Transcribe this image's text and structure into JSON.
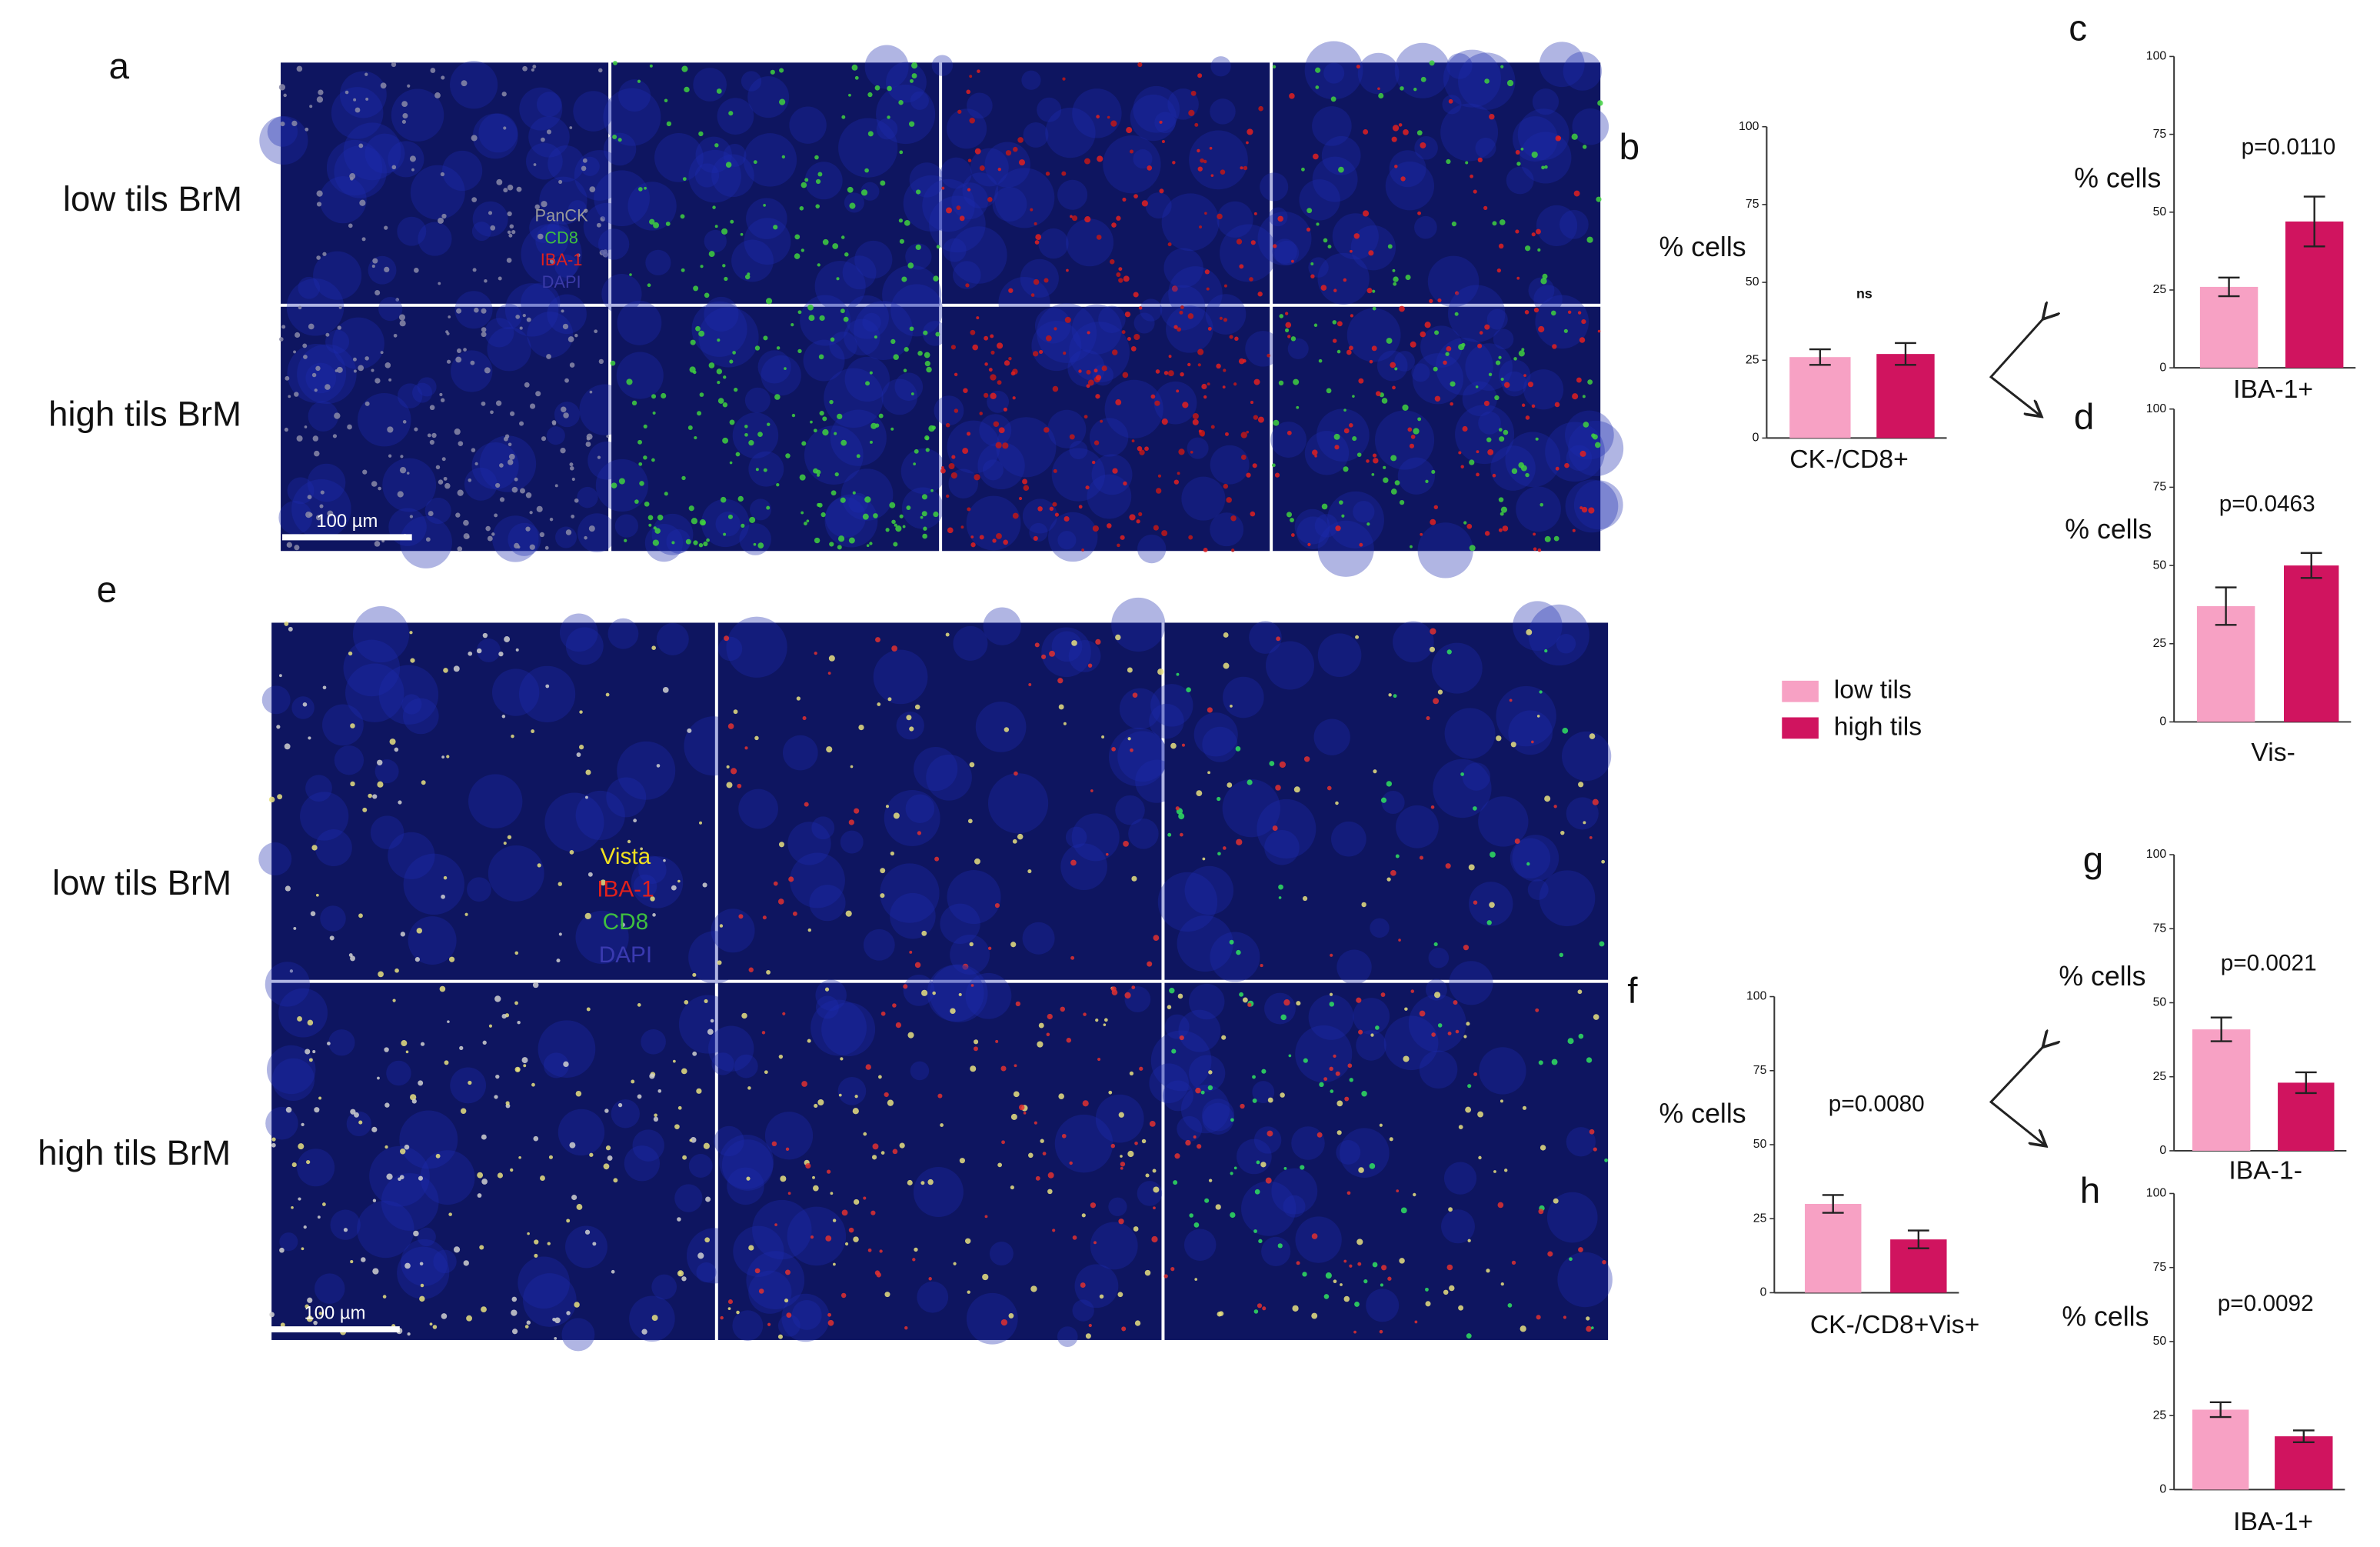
{
  "figure": {
    "microscopy": [
      {
        "panel": "a",
        "rows": [
          "low tils BrM",
          "high tils BrM"
        ],
        "markers": [
          {
            "label": "PanCK",
            "color": "#9a9a9a"
          },
          {
            "label": "CD8",
            "color": "#3fbf3f"
          },
          {
            "label": "IBA-1",
            "color": "#e0201c"
          },
          {
            "label": "DAPI",
            "color": "#3a3aa8"
          }
        ],
        "scale_bar": "100 µm"
      },
      {
        "panel": "e",
        "rows": [
          "low tils BrM",
          "high tils BrM"
        ],
        "markers": [
          {
            "label": "Vista",
            "color": "#f0e020"
          },
          {
            "label": "IBA-1",
            "color": "#e0201c"
          },
          {
            "label": "CD8",
            "color": "#3fbf3f"
          },
          {
            "label": "DAPI",
            "color": "#3a3ab0"
          }
        ],
        "scale_bar": "100 µm"
      }
    ],
    "legend": [
      {
        "name": "low tils",
        "color": "#f7a1c4"
      },
      {
        "name": "high tils",
        "color": "#d0145f"
      }
    ]
  },
  "chart_data": [
    {
      "type": "bar",
      "panel": "b",
      "ylabel": "% cells",
      "xlabel": "CK-/CD8+",
      "annotation": "ns",
      "values": [
        26,
        27
      ],
      "errors": [
        2.5,
        3.5
      ],
      "ylim": [
        0,
        100
      ],
      "yticks": [
        0,
        25,
        50,
        75,
        100
      ]
    },
    {
      "type": "bar",
      "panel": "c",
      "ylabel": "% cells",
      "xlabel": "IBA-1+",
      "annotation": "p=0.0110",
      "values": [
        26,
        47
      ],
      "errors": [
        3,
        8
      ],
      "ylim": [
        0,
        100
      ],
      "yticks": [
        0,
        25,
        50,
        75,
        100
      ]
    },
    {
      "type": "bar",
      "panel": "d",
      "ylabel": "% cells",
      "xlabel": "Vis-",
      "annotation": "p=0.0463",
      "values": [
        37,
        50
      ],
      "errors": [
        6,
        4
      ],
      "ylim": [
        0,
        100
      ],
      "yticks": [
        0,
        25,
        50,
        75,
        100
      ]
    },
    {
      "type": "bar",
      "panel": "f",
      "ylabel": "% cells",
      "xlabel": "CK-/CD8+Vis+",
      "annotation": "p=0.0080",
      "values": [
        30,
        18
      ],
      "errors": [
        3,
        3
      ],
      "ylim": [
        0,
        100
      ],
      "yticks": [
        0,
        25,
        50,
        75,
        100
      ]
    },
    {
      "type": "bar",
      "panel": "g",
      "ylabel": "% cells",
      "xlabel": "IBA-1-",
      "annotation": "p=0.0021",
      "values": [
        41,
        23
      ],
      "errors": [
        4,
        3.5
      ],
      "ylim": [
        0,
        100
      ],
      "yticks": [
        0,
        25,
        50,
        75,
        100
      ]
    },
    {
      "type": "bar",
      "panel": "h",
      "ylabel": "% cells",
      "xlabel": "IBA-1+",
      "annotation": "p=0.0092",
      "values": [
        27,
        18
      ],
      "errors": [
        2.5,
        2
      ],
      "ylim": [
        0,
        100
      ],
      "yticks": [
        0,
        25,
        50,
        75,
        100
      ]
    }
  ]
}
